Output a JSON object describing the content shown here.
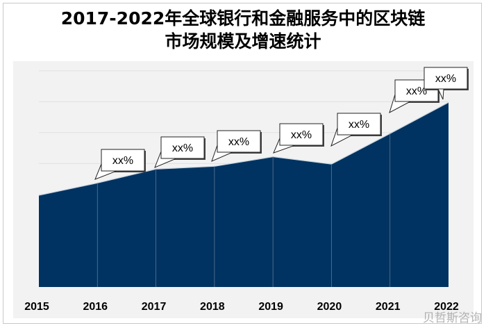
{
  "title": {
    "line1": "2017-2022年全球银行和金融服务中的区块链",
    "line2": "市场规模及增速统计"
  },
  "watermark": "贝哲斯咨询",
  "chart_data": {
    "type": "area",
    "title": "2017-2022年全球银行和金融服务中的区块链市场规模及增速统计",
    "categories": [
      "2015",
      "2016",
      "2017",
      "2018",
      "2019",
      "2020",
      "2021",
      "2022"
    ],
    "values": [
      2.97,
      3.37,
      3.82,
      3.91,
      4.22,
      3.98,
      4.97,
      5.98
    ],
    "data_labels": [
      null,
      "xx%",
      "xx%",
      "xx%",
      "xx%",
      "xx%",
      "xx%",
      "xx%"
    ],
    "ylim": [
      0,
      7
    ],
    "grid": true,
    "y_axis_labels_shown": false,
    "colors": {
      "fill": "#003361",
      "plot_bg": "#f2f2f2",
      "grid": "#e0e0e0"
    }
  }
}
